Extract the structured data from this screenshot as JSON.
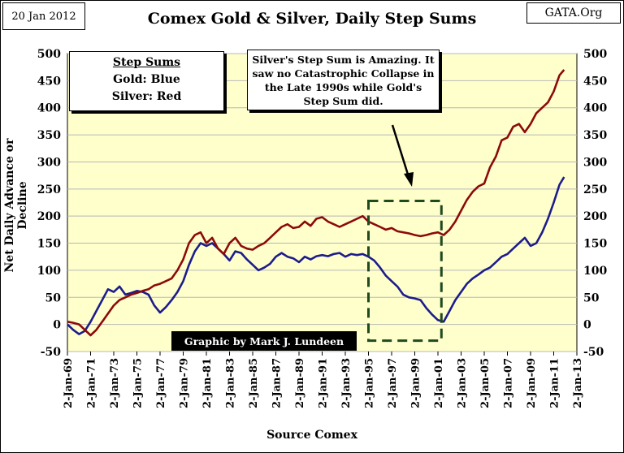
{
  "header": {
    "date": "20 Jan 2012",
    "source": "GATA.Org",
    "title": "Comex Gold & Silver, Daily Step Sums"
  },
  "legend": {
    "heading": "Step Sums",
    "gold": "Gold: Blue",
    "silver": "Silver: Red"
  },
  "annotation": "Silver's Step Sum is Amazing. It saw no Catastrophic Collapse in the Late 1990s while Gold's Step Sum did.",
  "credit": "Graphic by Mark J. Lundeen",
  "colors": {
    "gold": "#1c1c8c",
    "silver": "#8b0a0a",
    "plot_bg": "#ffffcc",
    "grid": "#b8b8b8"
  },
  "chart_data": {
    "type": "line",
    "title": "Comex Gold & Silver, Daily Step Sums",
    "xlabel": "Source Comex",
    "ylabel": "Net Daily Advance or Decline",
    "ylim": [
      -50,
      500
    ],
    "yticks": [
      -50,
      0,
      50,
      100,
      150,
      200,
      250,
      300,
      350,
      400,
      450,
      500
    ],
    "xlim": [
      1969.0,
      2013.0
    ],
    "xticks": [
      "2-Jan-69",
      "2-Jan-71",
      "2-Jan-73",
      "2-Jan-75",
      "2-Jan-77",
      "2-Jan-79",
      "2-Jan-81",
      "2-Jan-83",
      "2-Jan-85",
      "2-Jan-87",
      "2-Jan-89",
      "2-Jan-91",
      "2-Jan-93",
      "2-Jan-95",
      "2-Jan-97",
      "2-Jan-99",
      "2-Jan-01",
      "2-Jan-03",
      "2-Jan-05",
      "2-Jan-07",
      "2-Jan-09",
      "2-Jan-11",
      "2-Jan-13"
    ],
    "grid": true,
    "highlight_box": {
      "x": [
        1995.0,
        2001.3
      ],
      "y": [
        -30,
        228
      ]
    },
    "series": [
      {
        "name": "Gold",
        "color": "blue",
        "x": [
          1969.0,
          1969.5,
          1970.0,
          1970.5,
          1971.0,
          1971.5,
          1972.0,
          1972.5,
          1973.0,
          1973.5,
          1974.0,
          1974.5,
          1975.0,
          1975.5,
          1976.0,
          1976.5,
          1977.0,
          1977.5,
          1978.0,
          1978.5,
          1979.0,
          1979.5,
          1980.0,
          1980.5,
          1981.0,
          1981.5,
          1982.0,
          1982.5,
          1983.0,
          1983.5,
          1984.0,
          1984.5,
          1985.0,
          1985.5,
          1986.0,
          1986.5,
          1987.0,
          1987.5,
          1988.0,
          1988.5,
          1989.0,
          1989.5,
          1990.0,
          1990.5,
          1991.0,
          1991.5,
          1992.0,
          1992.5,
          1993.0,
          1993.5,
          1994.0,
          1994.5,
          1995.0,
          1995.5,
          1996.0,
          1996.5,
          1997.0,
          1997.5,
          1998.0,
          1998.5,
          1999.0,
          1999.5,
          2000.0,
          2000.5,
          2001.0,
          2001.5,
          2002.0,
          2002.5,
          2003.0,
          2003.5,
          2004.0,
          2004.5,
          2005.0,
          2005.5,
          2006.0,
          2006.5,
          2007.0,
          2007.5,
          2008.0,
          2008.5,
          2009.0,
          2009.5,
          2010.0,
          2010.5,
          2011.0,
          2011.5,
          2011.9
        ],
        "values": [
          0,
          -10,
          -18,
          -12,
          5,
          25,
          45,
          65,
          60,
          70,
          55,
          58,
          62,
          60,
          55,
          35,
          22,
          32,
          45,
          60,
          80,
          110,
          135,
          150,
          145,
          150,
          140,
          130,
          118,
          135,
          132,
          120,
          110,
          100,
          105,
          112,
          125,
          132,
          125,
          122,
          115,
          125,
          120,
          126,
          128,
          126,
          130,
          132,
          125,
          130,
          128,
          130,
          125,
          118,
          105,
          90,
          80,
          70,
          55,
          50,
          48,
          45,
          30,
          18,
          8,
          5,
          25,
          45,
          60,
          75,
          85,
          92,
          100,
          105,
          115,
          125,
          130,
          140,
          150,
          160,
          145,
          150,
          170,
          195,
          225,
          258,
          272
        ]
      },
      {
        "name": "Silver",
        "color": "red",
        "x": [
          1969.0,
          1969.5,
          1970.0,
          1970.5,
          1971.0,
          1971.5,
          1972.0,
          1972.5,
          1973.0,
          1973.5,
          1974.0,
          1974.5,
          1975.0,
          1975.5,
          1976.0,
          1976.5,
          1977.0,
          1977.5,
          1978.0,
          1978.5,
          1979.0,
          1979.5,
          1980.0,
          1980.5,
          1981.0,
          1981.5,
          1982.0,
          1982.5,
          1983.0,
          1983.5,
          1984.0,
          1984.5,
          1985.0,
          1985.5,
          1986.0,
          1986.5,
          1987.0,
          1987.5,
          1988.0,
          1988.5,
          1989.0,
          1989.5,
          1990.0,
          1990.5,
          1991.0,
          1991.5,
          1992.0,
          1992.5,
          1993.0,
          1993.5,
          1994.0,
          1994.5,
          1995.0,
          1995.5,
          1996.0,
          1996.5,
          1997.0,
          1997.5,
          1998.0,
          1998.5,
          1999.0,
          1999.5,
          2000.0,
          2000.5,
          2001.0,
          2001.5,
          2002.0,
          2002.5,
          2003.0,
          2003.5,
          2004.0,
          2004.5,
          2005.0,
          2005.5,
          2006.0,
          2006.5,
          2007.0,
          2007.5,
          2008.0,
          2008.5,
          2009.0,
          2009.5,
          2010.0,
          2010.5,
          2011.0,
          2011.5,
          2011.9
        ],
        "values": [
          5,
          3,
          0,
          -10,
          -20,
          -10,
          5,
          20,
          35,
          45,
          50,
          55,
          58,
          62,
          65,
          72,
          75,
          80,
          85,
          100,
          120,
          150,
          165,
          170,
          150,
          160,
          140,
          130,
          150,
          160,
          145,
          140,
          138,
          145,
          150,
          160,
          170,
          180,
          185,
          178,
          180,
          190,
          182,
          195,
          198,
          190,
          185,
          180,
          185,
          190,
          195,
          200,
          190,
          185,
          180,
          175,
          178,
          172,
          170,
          168,
          165,
          163,
          165,
          168,
          170,
          165,
          175,
          190,
          210,
          230,
          245,
          255,
          260,
          290,
          310,
          340,
          345,
          365,
          370,
          355,
          370,
          390,
          400,
          410,
          430,
          460,
          470
        ]
      }
    ]
  }
}
